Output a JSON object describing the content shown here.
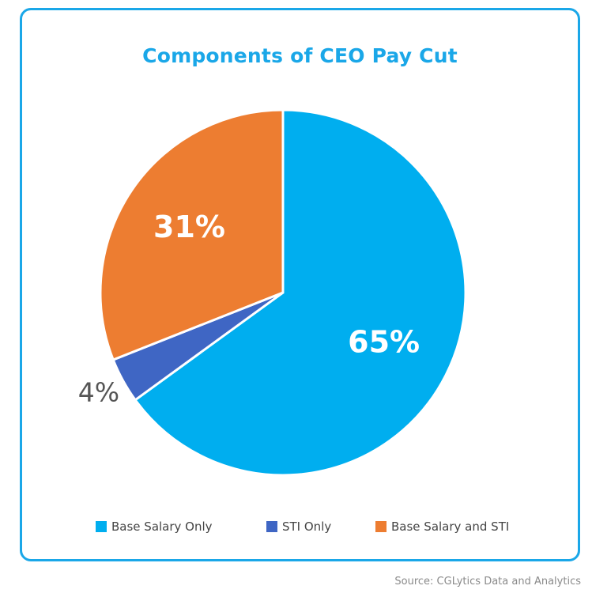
{
  "chart_data": {
    "type": "pie",
    "title": "Components of CEO Pay Cut",
    "categories": [
      "Base Salary Only",
      "STI Only",
      "Base Salary and STI"
    ],
    "values": [
      65,
      4,
      31
    ],
    "labels": [
      "65%",
      "4%",
      "31%"
    ],
    "colors": [
      "#00aeef",
      "#3f66c4",
      "#ed7d31"
    ],
    "legend_placement": "bottom"
  },
  "source": "Source: CGLytics Data and Analytics"
}
